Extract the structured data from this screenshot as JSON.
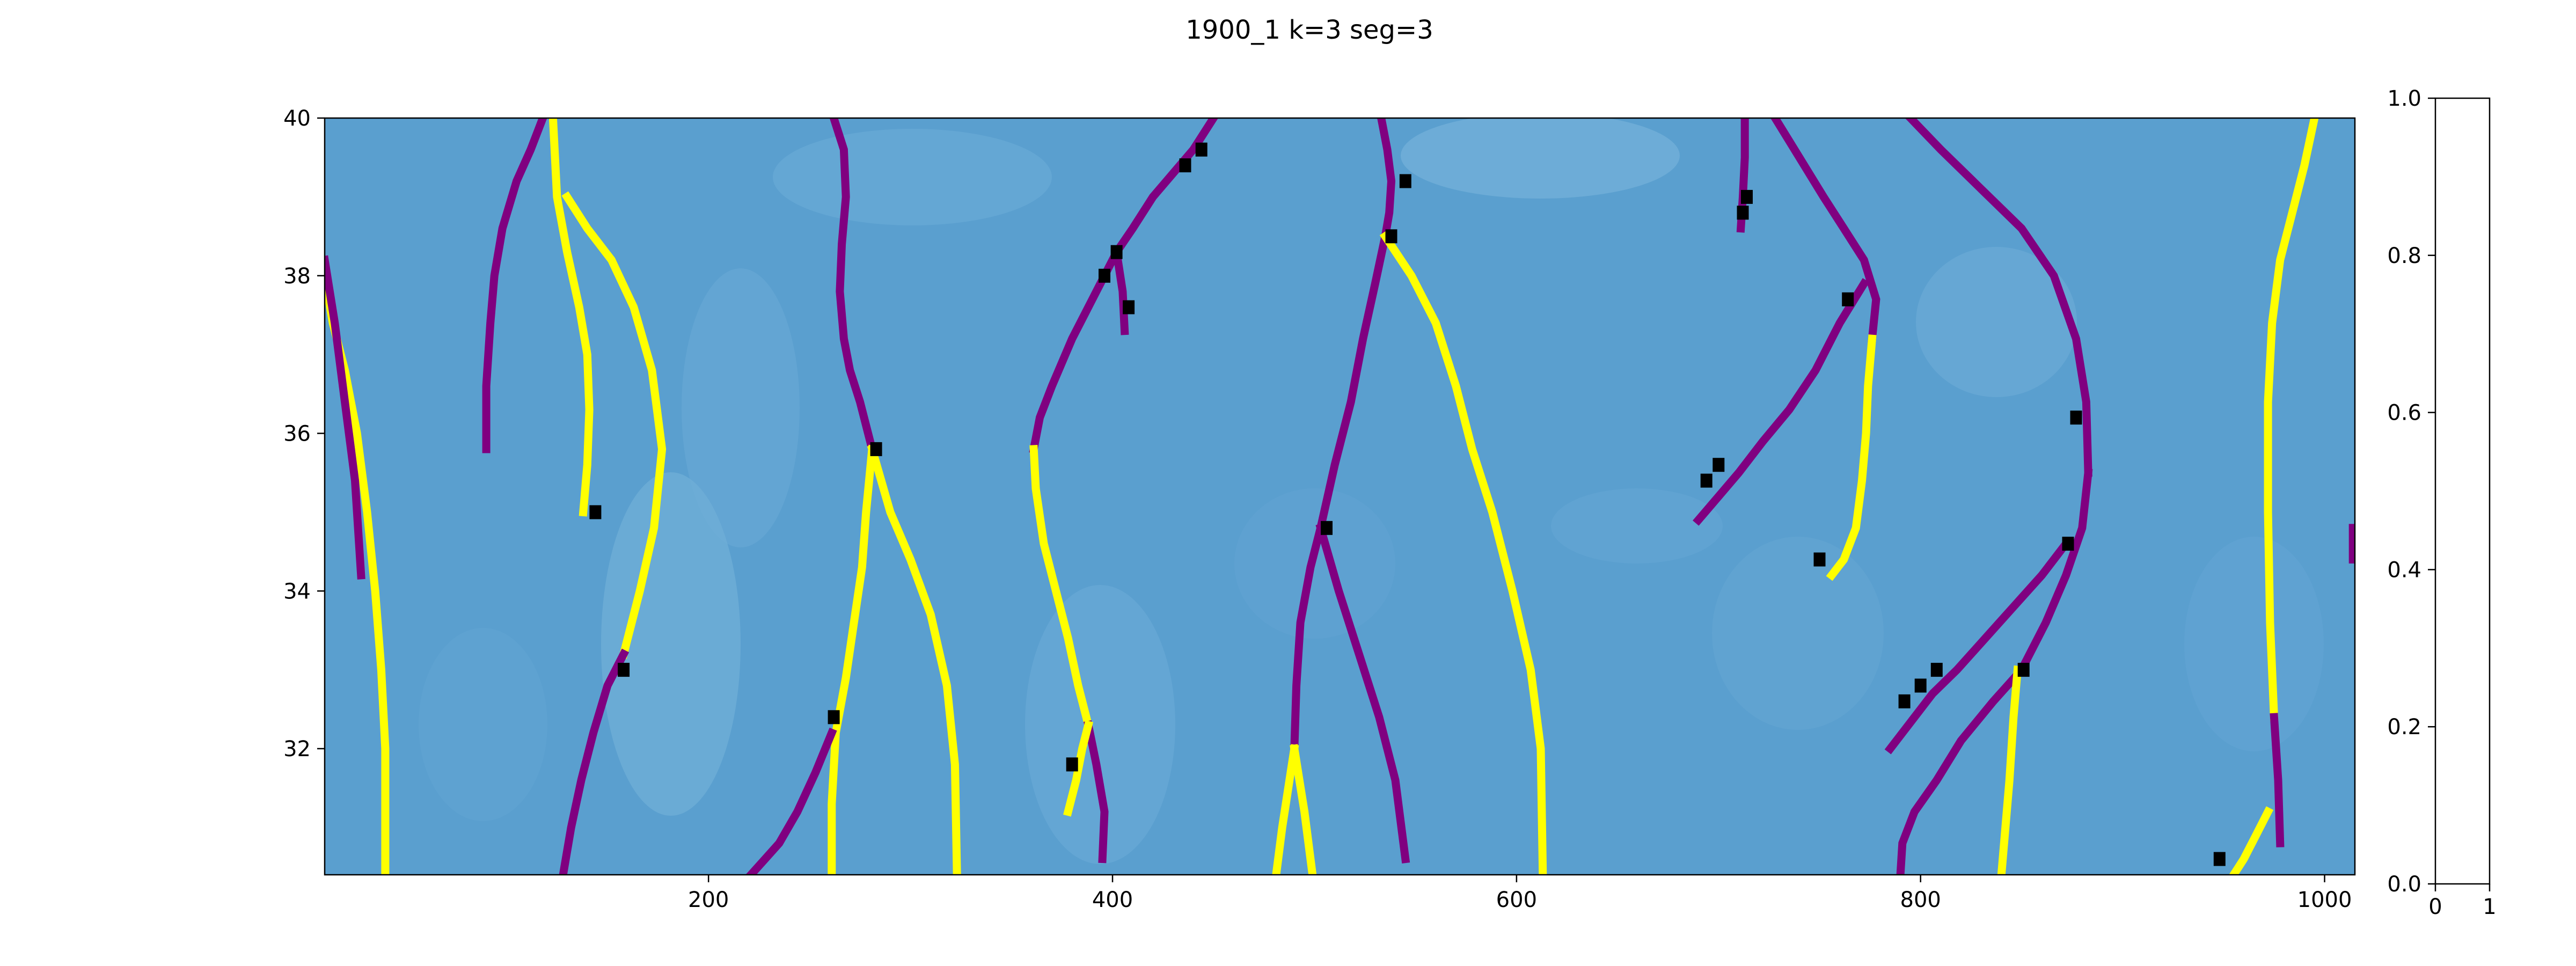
{
  "title": "1900_1 k=3   seg=3",
  "chart_data": [
    {
      "type": "heatmap",
      "title": "1900_1 k=3   seg=3",
      "xlabel": "",
      "ylabel": "",
      "xlim": [
        10,
        1015
      ],
      "ylim": [
        30.4,
        40
      ],
      "x_ticks": [
        200,
        400,
        600,
        800,
        1000
      ],
      "y_ticks": [
        32,
        34,
        36,
        38,
        40
      ],
      "x_tick_labels": [
        "200",
        "400",
        "600",
        "800",
        "1000"
      ],
      "y_tick_labels": [
        "32",
        "34",
        "36",
        "38",
        "40"
      ],
      "background_color": "#5a9fcf",
      "grid": false,
      "colors": {
        "yellow": "#ffff00",
        "purple": "#800080",
        "black": "#000000"
      },
      "series": [
        {
          "color": "yellow",
          "x": [
            10,
            14,
            20,
            26,
            31,
            35,
            38,
            40,
            40,
            40
          ],
          "y": [
            38.0,
            37.4,
            36.8,
            36.0,
            35.0,
            34.0,
            33.0,
            32.0,
            31.0,
            30.4
          ]
        },
        {
          "color": "purple",
          "x": [
            10,
            15,
            20,
            25,
            28
          ],
          "y": [
            38.2,
            37.4,
            36.4,
            35.4,
            34.2
          ]
        },
        {
          "color": "purple",
          "x": [
            118,
            112,
            105,
            98,
            94,
            92,
            90,
            90
          ],
          "y": [
            40.0,
            39.6,
            39.2,
            38.6,
            38.0,
            37.4,
            36.6,
            35.8
          ]
        },
        {
          "color": "yellow",
          "x": [
            123,
            125,
            130,
            136,
            140,
            141,
            140,
            138
          ],
          "y": [
            40.0,
            39.0,
            38.3,
            37.6,
            37.0,
            36.3,
            35.6,
            35.0
          ]
        },
        {
          "color": "yellow",
          "x": [
            130,
            140,
            152,
            163,
            172,
            177,
            173,
            166,
            158
          ],
          "y": [
            39.0,
            38.6,
            38.2,
            37.6,
            36.8,
            35.8,
            34.8,
            34.0,
            33.2
          ]
        },
        {
          "color": "purple",
          "x": [
            158,
            150,
            143,
            137,
            132,
            128
          ],
          "y": [
            33.2,
            32.8,
            32.2,
            31.6,
            31.0,
            30.4
          ]
        },
        {
          "color": "purple",
          "x": [
            262,
            267,
            268,
            266,
            265,
            267,
            270,
            275,
            281
          ],
          "y": [
            40.0,
            39.6,
            39.0,
            38.4,
            37.8,
            37.2,
            36.8,
            36.4,
            35.8
          ]
        },
        {
          "color": "yellow",
          "x": [
            281,
            278,
            276,
            272,
            268,
            263,
            261,
            261
          ],
          "y": [
            35.8,
            35.0,
            34.3,
            33.6,
            32.9,
            32.2,
            31.3,
            30.4
          ]
        },
        {
          "color": "yellow",
          "x": [
            281,
            290,
            300,
            310,
            318,
            322,
            323
          ],
          "y": [
            35.8,
            35.0,
            34.4,
            33.7,
            32.8,
            31.8,
            30.4
          ]
        },
        {
          "color": "purple",
          "x": [
            261,
            253,
            244,
            235,
            228,
            221
          ],
          "y": [
            32.2,
            31.7,
            31.2,
            30.8,
            30.6,
            30.4
          ]
        },
        {
          "color": "purple",
          "x": [
            450,
            440,
            430,
            420,
            410,
            402
          ],
          "y": [
            40.0,
            39.6,
            39.3,
            39.0,
            38.6,
            38.3
          ]
        },
        {
          "color": "purple",
          "x": [
            402,
            392,
            380,
            370,
            364,
            361
          ],
          "y": [
            38.3,
            37.8,
            37.2,
            36.6,
            36.2,
            35.8
          ]
        },
        {
          "color": "yellow",
          "x": [
            361,
            362,
            366,
            372,
            378,
            383,
            388
          ],
          "y": [
            35.8,
            35.3,
            34.6,
            34.0,
            33.4,
            32.8,
            32.3
          ]
        },
        {
          "color": "purple",
          "x": [
            388,
            392,
            396,
            395
          ],
          "y": [
            32.3,
            31.8,
            31.2,
            30.6
          ]
        },
        {
          "color": "yellow",
          "x": [
            388,
            385,
            382,
            378
          ],
          "y": [
            32.3,
            32.0,
            31.6,
            31.2
          ]
        },
        {
          "color": "purple",
          "x": [
            402,
            405,
            406
          ],
          "y": [
            38.3,
            37.8,
            37.3
          ]
        },
        {
          "color": "purple",
          "x": [
            533,
            536,
            538,
            537,
            535
          ],
          "y": [
            40.0,
            39.6,
            39.2,
            38.8,
            38.5
          ]
        },
        {
          "color": "purple",
          "x": [
            535,
            530,
            524,
            518,
            510,
            503
          ],
          "y": [
            38.5,
            37.9,
            37.2,
            36.4,
            35.6,
            34.8
          ]
        },
        {
          "color": "yellow",
          "x": [
            535,
            548,
            560,
            570,
            578,
            588,
            598,
            607,
            612,
            613
          ],
          "y": [
            38.5,
            38.0,
            37.4,
            36.6,
            35.8,
            35.0,
            34.0,
            33.0,
            32.0,
            30.4
          ]
        },
        {
          "color": "purple",
          "x": [
            503,
            498,
            493,
            491,
            490
          ],
          "y": [
            34.8,
            34.3,
            33.6,
            32.8,
            32.0
          ]
        },
        {
          "color": "yellow",
          "x": [
            490,
            487,
            484,
            481
          ],
          "y": [
            32.0,
            31.5,
            31.0,
            30.4
          ]
        },
        {
          "color": "purple",
          "x": [
            503,
            512,
            522,
            532,
            540,
            545
          ],
          "y": [
            34.8,
            34.0,
            33.2,
            32.4,
            31.6,
            30.6
          ]
        },
        {
          "color": "yellow",
          "x": [
            490,
            495,
            499
          ],
          "y": [
            32.0,
            31.2,
            30.4
          ]
        },
        {
          "color": "purple",
          "x": [
            713,
            713,
            712,
            711
          ],
          "y": [
            40.0,
            39.5,
            39.0,
            38.6
          ]
        },
        {
          "color": "purple",
          "x": [
            728,
            740,
            752,
            762,
            772,
            778,
            776
          ],
          "y": [
            40.0,
            39.5,
            39.0,
            38.6,
            38.2,
            37.7,
            37.2
          ]
        },
        {
          "color": "yellow",
          "x": [
            776,
            774,
            773,
            771,
            768,
            762,
            756
          ],
          "y": [
            37.2,
            36.6,
            36.0,
            35.4,
            34.8,
            34.4,
            34.2
          ]
        },
        {
          "color": "purple",
          "x": [
            772,
            760,
            748,
            735,
            722,
            710,
            700,
            690
          ],
          "y": [
            37.9,
            37.4,
            36.8,
            36.3,
            35.9,
            35.5,
            35.2,
            34.9
          ]
        },
        {
          "color": "purple",
          "x": [
            795,
            810,
            830,
            850,
            866,
            877,
            882,
            883
          ],
          "y": [
            40.0,
            39.6,
            39.1,
            38.6,
            38.0,
            37.2,
            36.4,
            35.5
          ]
        },
        {
          "color": "purple",
          "x": [
            883,
            880,
            872,
            862,
            850,
            836,
            820,
            808,
            797,
            791,
            790
          ],
          "y": [
            35.5,
            34.8,
            34.2,
            33.6,
            33.0,
            32.6,
            32.1,
            31.6,
            31.2,
            30.8,
            30.4
          ]
        },
        {
          "color": "purple",
          "x": [
            872,
            860,
            846,
            832,
            818,
            806,
            794,
            785
          ],
          "y": [
            34.6,
            34.2,
            33.8,
            33.4,
            33.0,
            32.7,
            32.3,
            32.0
          ]
        },
        {
          "color": "yellow",
          "x": [
            848,
            846,
            844,
            842,
            840
          ],
          "y": [
            33.0,
            32.4,
            31.6,
            31.0,
            30.4
          ]
        },
        {
          "color": "yellow",
          "x": [
            995,
            990,
            984,
            978,
            974,
            972,
            972,
            973,
            975
          ],
          "y": [
            40.0,
            39.4,
            38.8,
            38.2,
            37.4,
            36.4,
            35.0,
            33.6,
            32.4
          ]
        },
        {
          "color": "purple",
          "x": [
            975,
            977,
            978
          ],
          "y": [
            32.4,
            31.6,
            30.8
          ]
        },
        {
          "color": "yellow",
          "x": [
            972,
            966,
            960,
            955
          ],
          "y": [
            31.2,
            30.9,
            30.6,
            30.4
          ]
        },
        {
          "color": "purple",
          "x": [
            1014,
            1014
          ],
          "y": [
            34.8,
            34.4
          ]
        }
      ],
      "black_markers": [
        {
          "x": 144,
          "y": 35.0
        },
        {
          "x": 158,
          "y": 33.0
        },
        {
          "x": 283,
          "y": 35.8
        },
        {
          "x": 262,
          "y": 32.4
        },
        {
          "x": 380,
          "y": 31.8
        },
        {
          "x": 402,
          "y": 38.3
        },
        {
          "x": 396,
          "y": 38.0
        },
        {
          "x": 408,
          "y": 37.6
        },
        {
          "x": 436,
          "y": 39.4
        },
        {
          "x": 444,
          "y": 39.6
        },
        {
          "x": 545,
          "y": 39.2
        },
        {
          "x": 538,
          "y": 38.5
        },
        {
          "x": 506,
          "y": 34.8
        },
        {
          "x": 714,
          "y": 39.0
        },
        {
          "x": 712,
          "y": 38.8
        },
        {
          "x": 764,
          "y": 37.7
        },
        {
          "x": 700,
          "y": 35.6
        },
        {
          "x": 694,
          "y": 35.4
        },
        {
          "x": 750,
          "y": 34.4
        },
        {
          "x": 877,
          "y": 36.2
        },
        {
          "x": 873,
          "y": 34.6
        },
        {
          "x": 851,
          "y": 33.0
        },
        {
          "x": 808,
          "y": 33.0
        },
        {
          "x": 800,
          "y": 32.8
        },
        {
          "x": 792,
          "y": 32.6
        },
        {
          "x": 948,
          "y": 30.6
        }
      ]
    },
    {
      "type": "heatmap",
      "title": "",
      "xlim": [
        0,
        1
      ],
      "ylim": [
        0,
        1
      ],
      "x_ticks": [
        0,
        1
      ],
      "y_ticks": [
        0.0,
        0.2,
        0.4,
        0.6,
        0.8,
        1.0
      ],
      "x_tick_labels": [
        "0",
        "1"
      ],
      "y_tick_labels": [
        "0.0",
        "0.2",
        "0.4",
        "0.6",
        "0.8",
        "1.0"
      ],
      "background_color": "#ffffff"
    }
  ]
}
